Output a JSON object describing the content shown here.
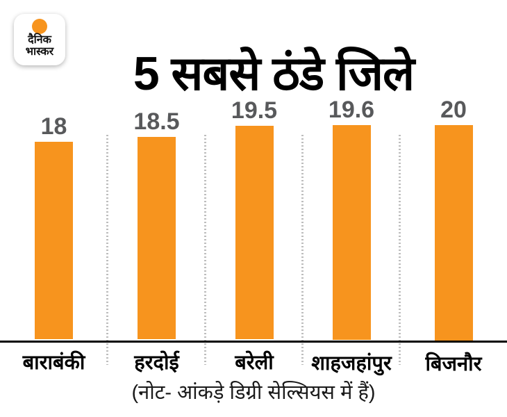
{
  "logo": {
    "line1": "दैनिक",
    "line2": "भास्कर",
    "dot_color": "#F7941E"
  },
  "title": "5 सबसे ठंडे जिले",
  "footnote": "(नोट- आंकड़े डिग्री सेल्सियस में हैं)",
  "chart_data": {
    "type": "bar",
    "title": "5 सबसे ठंडे जिले",
    "categories": [
      "बाराबंकी",
      "हरदोई",
      "बरेली",
      "शाहजहांपुर",
      "बिजनौर"
    ],
    "values": [
      18,
      18.5,
      19.5,
      19.6,
      20
    ],
    "value_labels": [
      "18",
      "18.5",
      "19.5",
      "19.6",
      "20"
    ],
    "xlabel": "",
    "ylabel": "",
    "ylim": [
      0,
      20
    ],
    "grid": "off",
    "legend": "none",
    "bar_color": "#F7941E",
    "value_label_color": "#58595B",
    "divider_color": "#BDBDBD",
    "axis_color": "#000000"
  }
}
